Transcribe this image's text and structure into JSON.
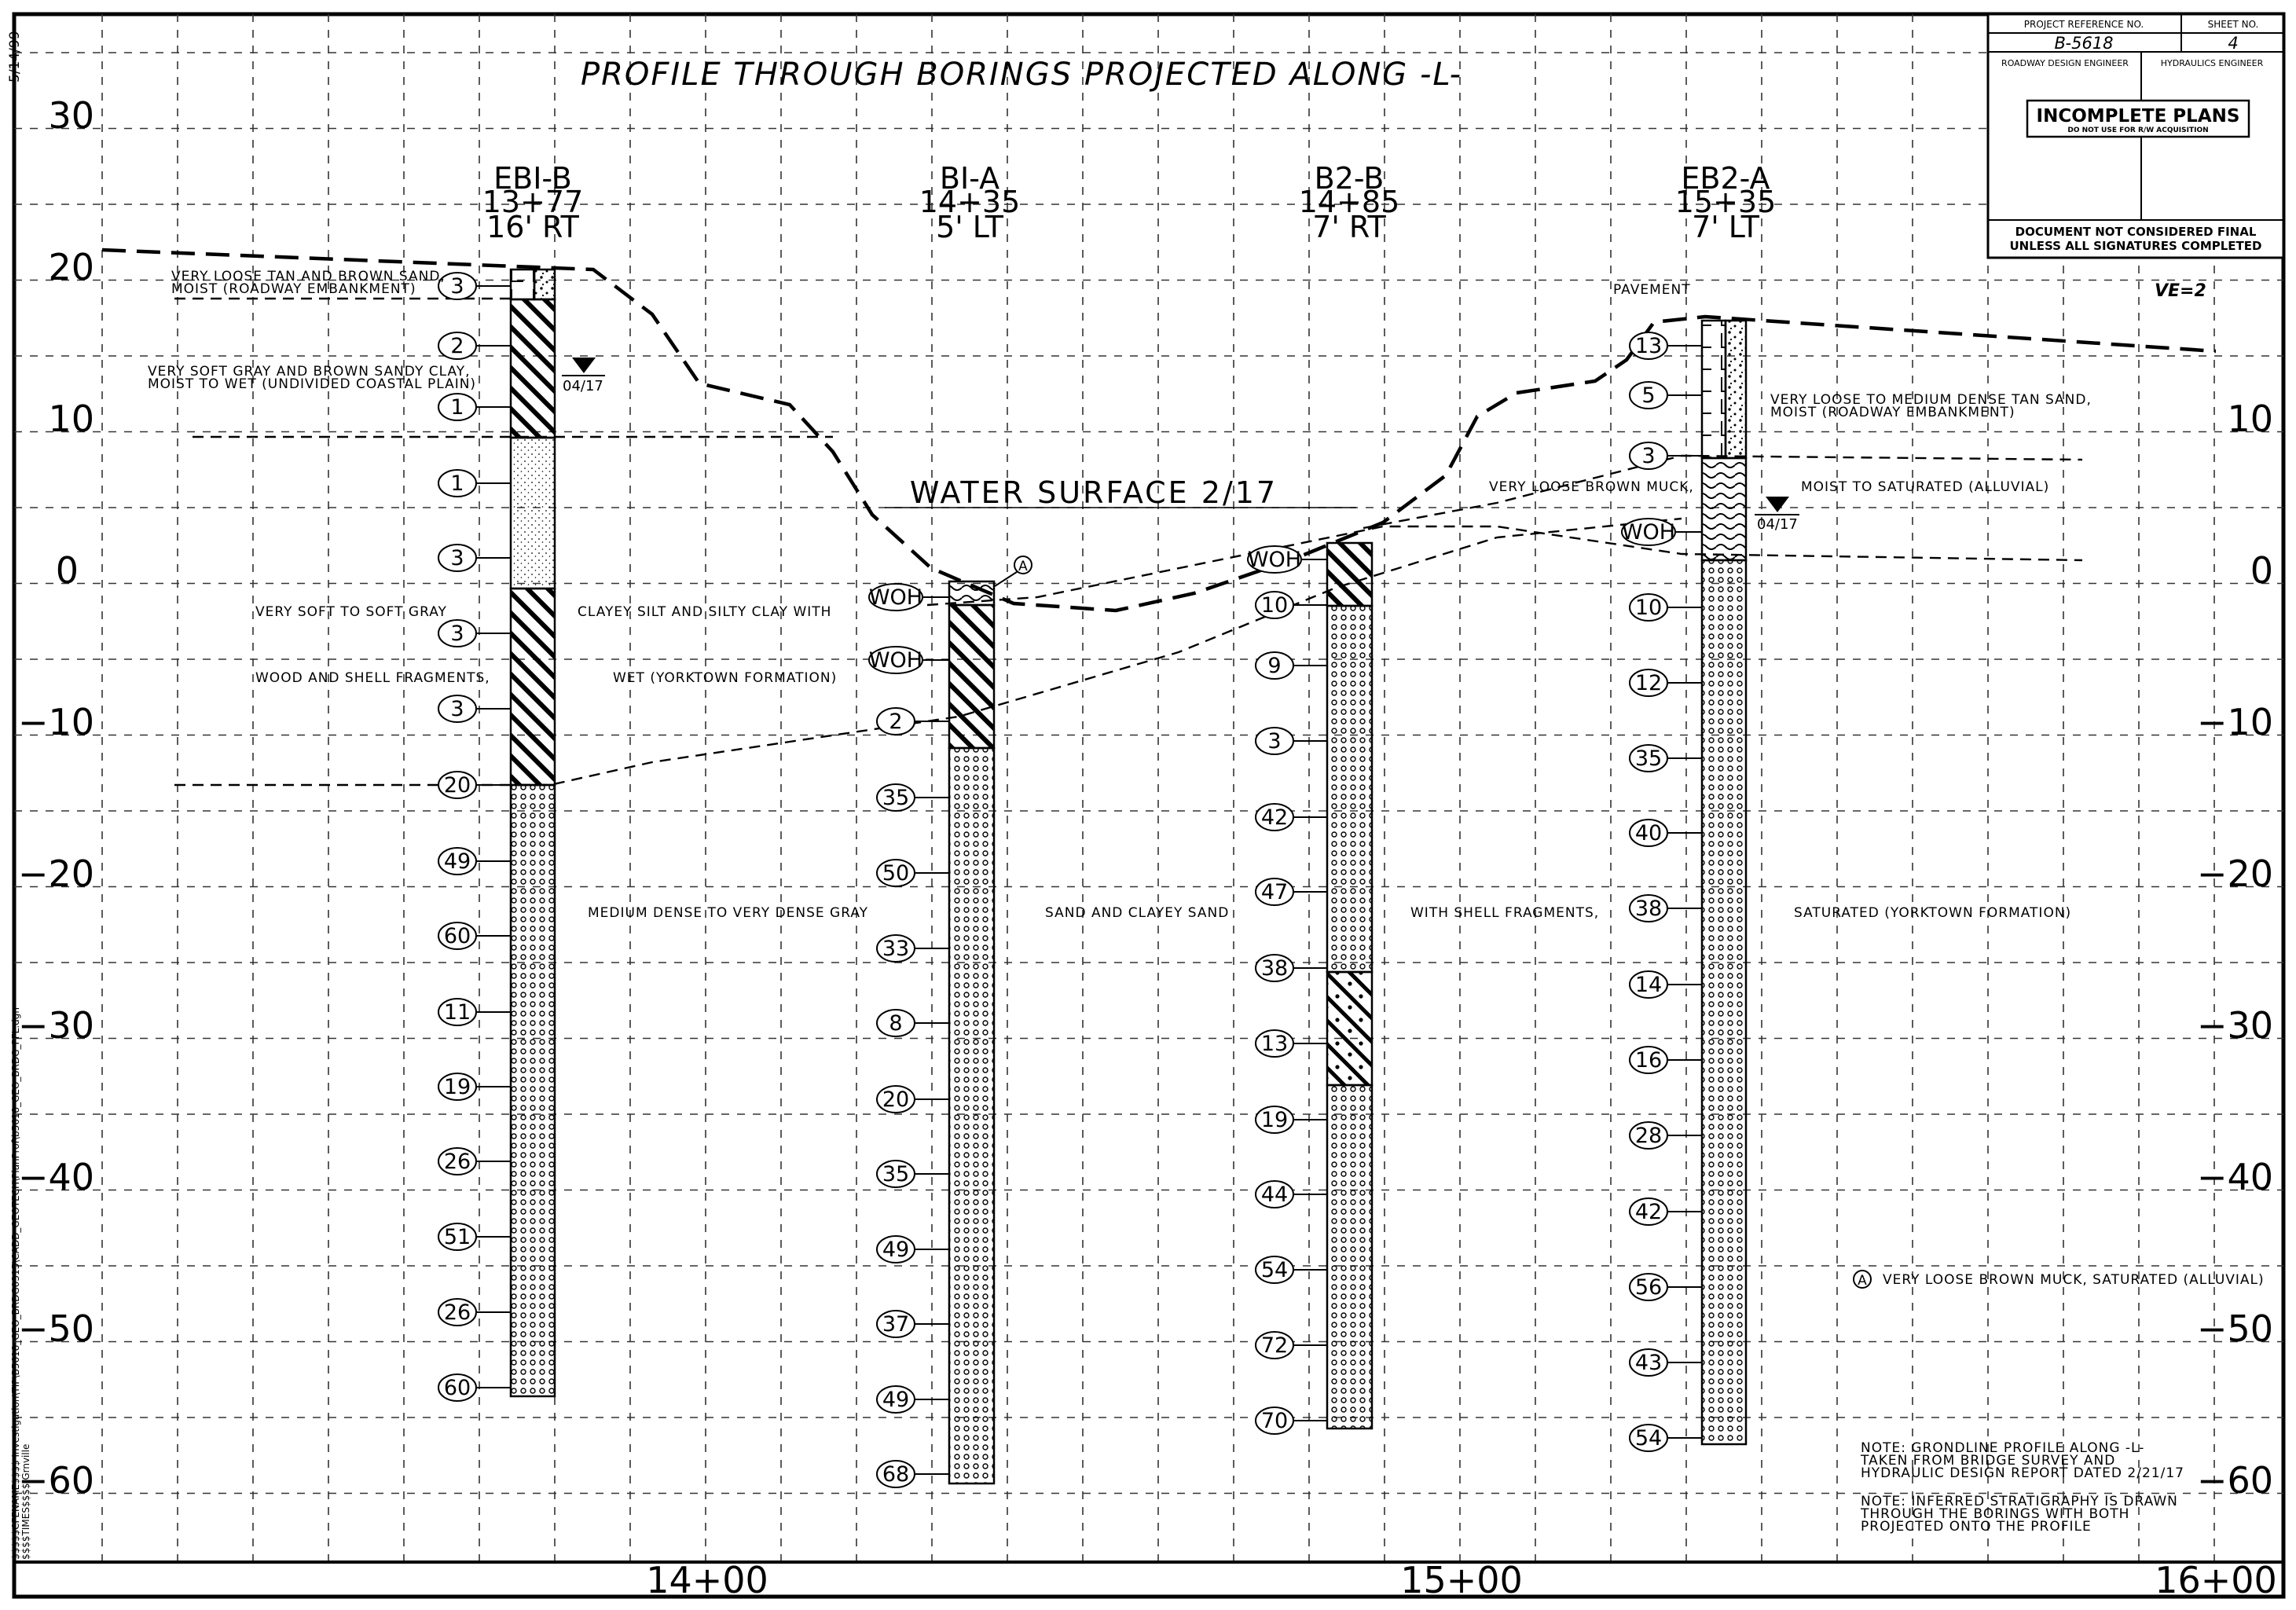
{
  "title": "PROFILE THROUGH BORINGS PROJECTED ALONG -L-",
  "date_stamp": "5/14/99",
  "file_path": "$$$$$CFENAME$$$$ Investigation\\TIP\\B5618_GEO_BRDG0315\\CADD_GEOTECH\\PlanProf\\b5618_GEO_BRDG_PFL.dgn",
  "file_path_2": "$$$$TIMES$$$$ Grnville",
  "vertical_exaggeration": "VE=2",
  "elevations": [
    "30",
    "20",
    "10",
    "0",
    "−10",
    "−20",
    "−30",
    "−40",
    "−50",
    "−60"
  ],
  "stations": [
    "14+00",
    "15+00",
    "16+00"
  ],
  "title_block": {
    "project_reference_label": "PROJECT REFERENCE NO.",
    "sheet_no_label": "SHEET NO.",
    "project_reference": "B-5618",
    "sheet_no": "4",
    "roadway_design": "ROADWAY DESIGN ENGINEER",
    "hydraulics": "HYDRAULICS ENGINEER",
    "stamp_main": "INCOMPLETE PLANS",
    "stamp_sub": "DO NOT USE FOR R/W ACQUISITION",
    "final_1": "DOCUMENT NOT CONSIDERED FINAL",
    "final_2": "UNLESS ALL SIGNATURES COMPLETED"
  },
  "borings": [
    {
      "id": "EBI-B",
      "station": "13+77",
      "offset": "16' RT"
    },
    {
      "id": "BI-A",
      "station": "14+35",
      "offset": "5' LT"
    },
    {
      "id": "B2-B",
      "station": "14+85",
      "offset": "7' RT"
    },
    {
      "id": "EB2-A",
      "station": "15+35",
      "offset": "7' LT"
    }
  ],
  "blow_counts": {
    "ebi_b": [
      "3",
      "2",
      "1",
      "1",
      "3",
      "3",
      "3",
      "20",
      "49",
      "60",
      "11",
      "19",
      "26",
      "51",
      "26",
      "60"
    ],
    "bi_a": [
      "WOH",
      "WOH",
      "2",
      "35",
      "50",
      "33",
      "8",
      "20",
      "35",
      "49",
      "37",
      "49",
      "68"
    ],
    "b2_b": [
      "WOH",
      "10",
      "9",
      "3",
      "42",
      "47",
      "38",
      "13",
      "19",
      "44",
      "54",
      "72",
      "70"
    ],
    "eb2_a": [
      "13",
      "5",
      "3",
      "WOH",
      "10",
      "12",
      "35",
      "40",
      "38",
      "14",
      "16",
      "28",
      "42",
      "56",
      "43",
      "54"
    ]
  },
  "water_surface": "WATER SURFACE 2/17",
  "water_date_1": "04/17",
  "water_date_2": "04/17",
  "labels": {
    "l1a": "VERY LOOSE TAN AND BROWN SAND,",
    "l1b": "MOIST (ROADWAY EMBANKMENT)",
    "l2a": "VERY SOFT GRAY AND BROWN SANDY CLAY,",
    "l2b": "MOIST TO WET (UNDIVIDED COASTAL PLAIN)",
    "l3a": "VERY SOFT TO SOFT GRAY",
    "l3b": "CLAYEY SILT AND SILTY CLAY WITH",
    "l3c": "WOOD AND SHELL FRAGMENTS,",
    "l3d": "WET (YORKTOWN FORMATION)",
    "l4a": "MEDIUM DENSE TO VERY DENSE GRAY",
    "l4b": "SAND AND CLAYEY SAND",
    "l4c": "WITH SHELL FRAGMENTS,",
    "l4d": "SATURATED (YORKTOWN FORMATION)",
    "pavement": "PAVEMENT",
    "l5a": "VERY LOOSE TO MEDIUM DENSE TAN SAND,",
    "l5b": "MOIST (ROADWAY EMBANKMENT)",
    "l6a": "VERY LOOSE BROWN MUCK,",
    "l6b": "MOIST TO SATURATED (ALLUVIAL)",
    "legend_key": "A",
    "legend_text": "VERY LOOSE BROWN MUCK, SATURATED (ALLUVIAL)",
    "note1a": "NOTE: GRONDLINE PROFILE ALONG -L-",
    "note1b": "TAKEN FROM BRIDGE SURVEY AND",
    "note1c": "HYDRAULIC DESIGN REPORT DATED 2/21/17",
    "note2a": "NOTE: INFERRED STRATIGRAPHY IS DRAWN",
    "note2b": "THROUGH THE BORINGS WITH BOTH",
    "note2c": "PROJECTED ONTO THE PROFILE"
  }
}
